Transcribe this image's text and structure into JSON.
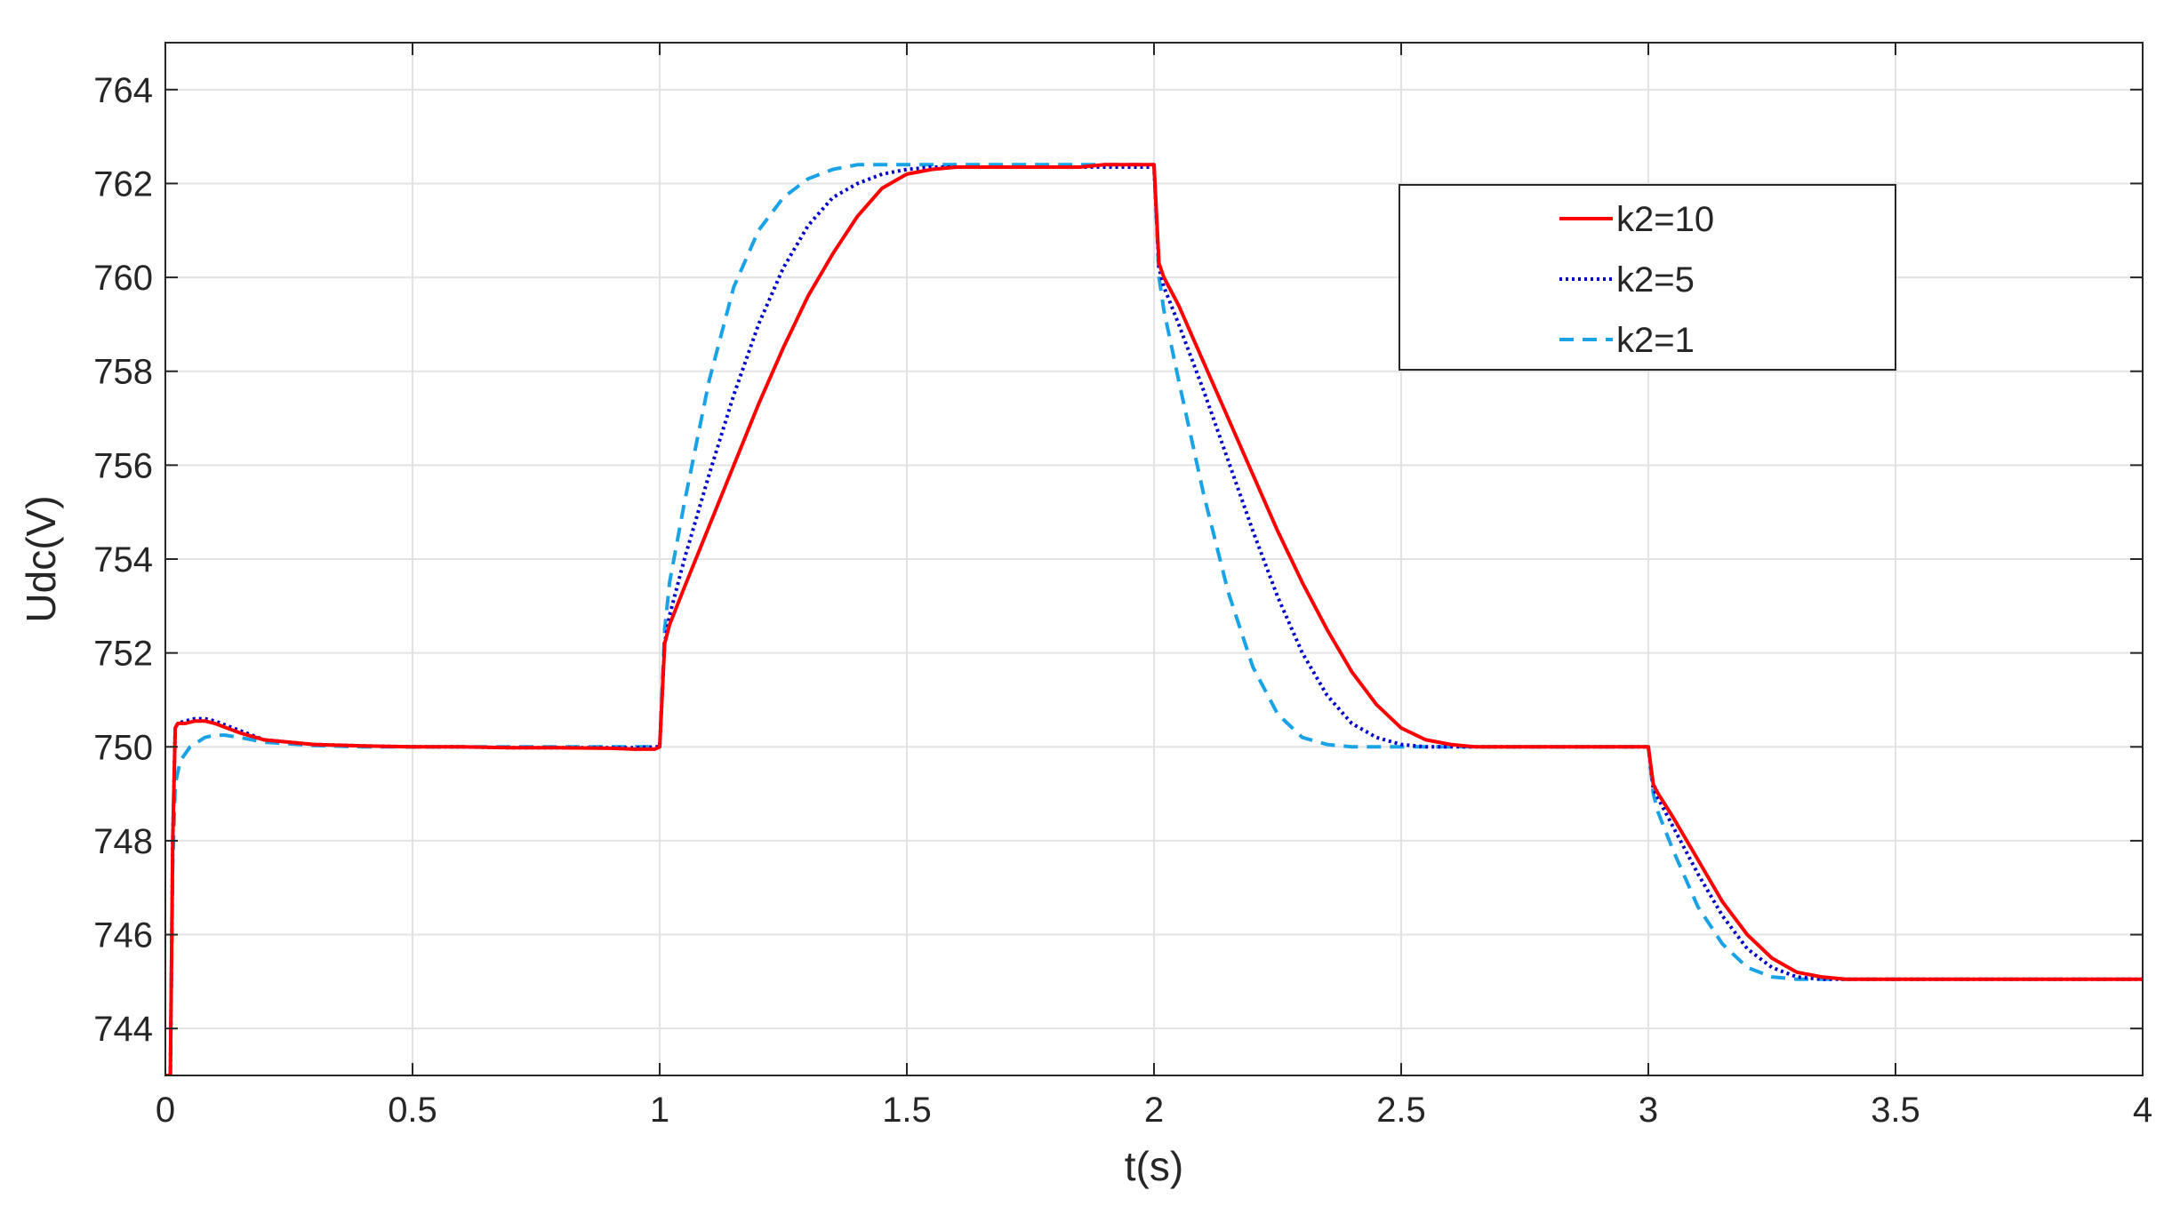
{
  "chart_data": {
    "type": "line",
    "title": "",
    "xlabel": "t(s)",
    "ylabel": "Udc(V)",
    "xlim": [
      0,
      4
    ],
    "ylim": [
      743,
      765
    ],
    "xticks": [
      0,
      0.5,
      1,
      1.5,
      2,
      2.5,
      3,
      3.5,
      4
    ],
    "xtick_labels": [
      "0",
      "0.5",
      "1",
      "1.5",
      "2",
      "2.5",
      "3",
      "3.5",
      "4"
    ],
    "yticks": [
      744,
      746,
      748,
      750,
      752,
      754,
      756,
      758,
      760,
      762,
      764
    ],
    "ytick_labels": [
      "744",
      "746",
      "748",
      "750",
      "752",
      "754",
      "756",
      "758",
      "760",
      "762",
      "764"
    ],
    "grid": true,
    "legend_position": "top-right",
    "series": [
      {
        "name": "k2=10",
        "color": "#ff0000",
        "style": "solid",
        "x": [
          0,
          0.01,
          0.015,
          0.02,
          0.025,
          0.04,
          0.06,
          0.08,
          0.1,
          0.15,
          0.2,
          0.3,
          0.4,
          0.5,
          0.6,
          0.7,
          0.8,
          0.9,
          0.95,
          0.99,
          1.0,
          1.01,
          1.02,
          1.05,
          1.1,
          1.15,
          1.2,
          1.25,
          1.3,
          1.35,
          1.4,
          1.45,
          1.5,
          1.55,
          1.6,
          1.65,
          1.7,
          1.75,
          1.8,
          1.85,
          1.9,
          1.95,
          1.99,
          2.0,
          2.01,
          2.02,
          2.05,
          2.1,
          2.15,
          2.2,
          2.25,
          2.3,
          2.35,
          2.4,
          2.45,
          2.5,
          2.55,
          2.6,
          2.65,
          2.7,
          2.75,
          2.8,
          2.85,
          2.9,
          2.95,
          2.99,
          3.0,
          3.01,
          3.02,
          3.05,
          3.1,
          3.15,
          3.2,
          3.25,
          3.3,
          3.35,
          3.4,
          3.5,
          3.6,
          3.7,
          3.8,
          3.9,
          4.0
        ],
        "y": [
          743,
          743,
          748,
          750.4,
          750.5,
          750.5,
          750.55,
          750.55,
          750.5,
          750.3,
          750.15,
          750.05,
          750.02,
          750.0,
          750.0,
          749.98,
          749.98,
          749.97,
          749.95,
          749.95,
          750.0,
          752.2,
          752.6,
          753.4,
          754.7,
          756.0,
          757.3,
          758.5,
          759.6,
          760.5,
          761.3,
          761.9,
          762.2,
          762.3,
          762.35,
          762.35,
          762.35,
          762.35,
          762.35,
          762.35,
          762.4,
          762.4,
          762.4,
          762.4,
          760.3,
          760.0,
          759.4,
          758.2,
          757.0,
          755.8,
          754.6,
          753.5,
          752.5,
          751.6,
          750.9,
          750.4,
          750.15,
          750.05,
          750.0,
          750.0,
          750.0,
          750.0,
          750.0,
          750.0,
          750.0,
          750.0,
          750.0,
          749.2,
          749.0,
          748.5,
          747.6,
          746.7,
          746.0,
          745.5,
          745.2,
          745.1,
          745.05,
          745.05,
          745.05,
          745.05,
          745.05,
          745.05,
          745.05
        ]
      },
      {
        "name": "k2=5",
        "color": "#0000cc",
        "style": "dotted",
        "x": [
          0,
          0.01,
          0.015,
          0.02,
          0.025,
          0.04,
          0.06,
          0.08,
          0.1,
          0.15,
          0.2,
          0.3,
          0.4,
          0.5,
          0.6,
          0.7,
          0.8,
          0.9,
          0.95,
          0.99,
          1.0,
          1.01,
          1.02,
          1.05,
          1.1,
          1.15,
          1.2,
          1.25,
          1.3,
          1.35,
          1.4,
          1.45,
          1.5,
          1.55,
          1.6,
          1.65,
          1.7,
          1.75,
          1.8,
          1.85,
          1.9,
          1.95,
          1.99,
          2.0,
          2.01,
          2.02,
          2.05,
          2.1,
          2.15,
          2.2,
          2.25,
          2.3,
          2.35,
          2.4,
          2.45,
          2.5,
          2.55,
          2.6,
          2.65,
          2.7,
          2.75,
          2.8,
          2.85,
          2.9,
          2.95,
          2.99,
          3.0,
          3.01,
          3.02,
          3.05,
          3.1,
          3.15,
          3.2,
          3.25,
          3.3,
          3.35,
          3.4,
          3.5,
          3.6,
          3.7,
          3.8,
          3.9,
          4.0
        ],
        "y": [
          743,
          743,
          748,
          750.4,
          750.5,
          750.55,
          750.6,
          750.6,
          750.55,
          750.35,
          750.15,
          750.05,
          750.02,
          750.0,
          750.0,
          749.98,
          749.98,
          749.98,
          749.98,
          750.0,
          750.0,
          752.2,
          752.8,
          754.0,
          755.8,
          757.5,
          759.0,
          760.2,
          761.1,
          761.7,
          762.0,
          762.2,
          762.3,
          762.35,
          762.35,
          762.35,
          762.35,
          762.35,
          762.35,
          762.35,
          762.35,
          762.35,
          762.35,
          762.35,
          760.2,
          759.8,
          759.0,
          757.6,
          756.1,
          754.6,
          753.2,
          752.0,
          751.1,
          750.5,
          750.2,
          750.05,
          750.0,
          750.0,
          750.0,
          750.0,
          750.0,
          750.0,
          750.0,
          750.0,
          750.0,
          750.0,
          750.0,
          749.1,
          748.9,
          748.3,
          747.3,
          746.4,
          745.7,
          745.3,
          745.1,
          745.05,
          745.05,
          745.05,
          745.05,
          745.05,
          745.05,
          745.05,
          745.05
        ]
      },
      {
        "name": "k2=1",
        "color": "#19a3e6",
        "style": "dashed",
        "x": [
          0,
          0.01,
          0.015,
          0.02,
          0.03,
          0.05,
          0.08,
          0.1,
          0.12,
          0.15,
          0.2,
          0.3,
          0.4,
          0.5,
          0.6,
          0.7,
          0.8,
          0.9,
          0.95,
          0.99,
          1.0,
          1.01,
          1.02,
          1.05,
          1.1,
          1.15,
          1.2,
          1.25,
          1.3,
          1.35,
          1.4,
          1.45,
          1.5,
          1.55,
          1.6,
          1.65,
          1.7,
          1.75,
          1.8,
          1.85,
          1.9,
          1.95,
          1.99,
          2.0,
          2.01,
          2.02,
          2.05,
          2.1,
          2.15,
          2.2,
          2.25,
          2.3,
          2.35,
          2.4,
          2.45,
          2.5,
          2.55,
          2.6,
          2.65,
          2.7,
          2.75,
          2.8,
          2.85,
          2.9,
          2.95,
          2.99,
          3.0,
          3.01,
          3.02,
          3.05,
          3.1,
          3.15,
          3.2,
          3.25,
          3.3,
          3.35,
          3.4,
          3.5,
          3.6,
          3.7,
          3.8,
          3.9,
          4.0
        ],
        "y": [
          743,
          743,
          747.5,
          749.2,
          749.7,
          750.0,
          750.2,
          750.25,
          750.25,
          750.2,
          750.1,
          750.03,
          750.0,
          750.0,
          750.0,
          750.0,
          750.0,
          750.0,
          750.0,
          750.0,
          750.0,
          752.5,
          753.5,
          755.2,
          757.8,
          759.8,
          761.0,
          761.7,
          762.1,
          762.3,
          762.4,
          762.4,
          762.4,
          762.4,
          762.4,
          762.4,
          762.4,
          762.4,
          762.4,
          762.4,
          762.4,
          762.4,
          762.4,
          762.4,
          760.0,
          759.3,
          757.8,
          755.4,
          753.3,
          751.7,
          750.7,
          750.2,
          750.05,
          750.0,
          750.0,
          750.0,
          750.0,
          750.0,
          750.0,
          750.0,
          750.0,
          750.0,
          750.0,
          750.0,
          750.0,
          750.0,
          750.0,
          749.0,
          748.6,
          747.8,
          746.6,
          745.8,
          745.3,
          745.1,
          745.05,
          745.05,
          745.05,
          745.05,
          745.05,
          745.05,
          745.05,
          745.05,
          745.05
        ]
      }
    ]
  }
}
